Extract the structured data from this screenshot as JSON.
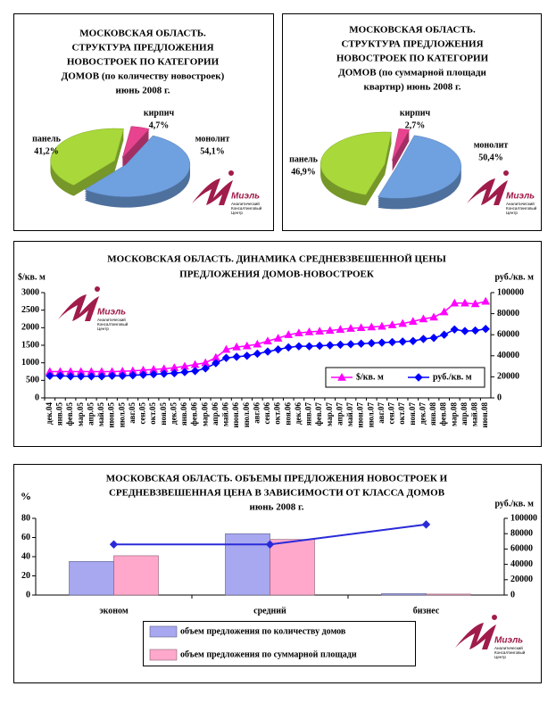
{
  "chart_data": [
    {
      "type": "pie",
      "title": [
        "МОСКОВСКАЯ ОБЛАСТЬ.",
        "СТРУКТУРА ПРЕДЛОЖЕНИЯ",
        "НОВОСТРОЕК ПО КАТЕГОРИИ",
        "ДОМОВ (по количеству новостроек)",
        "июнь 2008 г."
      ],
      "categories": [
        "кирпич",
        "монолит",
        "панель"
      ],
      "values": [
        4.7,
        54.1,
        41.2
      ],
      "value_labels": [
        "4,7%",
        "54,1%",
        "41,2%"
      ],
      "colors": [
        "#e8438f",
        "#6fa0e0",
        "#a8d83a"
      ],
      "logo": "Миэль",
      "logo_text": [
        "Аналитический",
        "Консалтинговый",
        "Центр"
      ]
    },
    {
      "type": "pie",
      "title": [
        "МОСКОВСКАЯ ОБЛАСТЬ.",
        "СТРУКТУРА ПРЕДЛОЖЕНИЯ",
        "НОВОСТРОЕК ПО КАТЕГОРИИ",
        "ДОМОВ (по суммарной площади",
        "квартир) июнь 2008 г."
      ],
      "categories": [
        "кирпич",
        "монолит",
        "панель"
      ],
      "values": [
        2.7,
        50.4,
        46.9
      ],
      "value_labels": [
        "2,7%",
        "50,4%",
        "46,9%"
      ],
      "colors": [
        "#e8438f",
        "#6fa0e0",
        "#a8d83a"
      ],
      "logo": "Миэль",
      "logo_text": [
        "Аналитический",
        "Консалтинговый",
        "Центр"
      ]
    },
    {
      "type": "line",
      "title": [
        "МОСКОВСКАЯ ОБЛАСТЬ. ДИНАМИКА СРЕДНЕВЗВЕШЕННОЙ ЦЕНЫ",
        "ПРЕДЛОЖЕНИЯ ДОМОВ-НОВОСТРОЕК"
      ],
      "ylabel": "$/кв. м",
      "y2label": "руб./кв. м",
      "categories": [
        "дек.04",
        "янв.05",
        "фев.05",
        "мар.05",
        "апр.05",
        "май.05",
        "июн.05",
        "июл.05",
        "авг.05",
        "сен.05",
        "окт.05",
        "ноя.05",
        "дек.05",
        "янв.06",
        "фев.06",
        "мар.06",
        "апр.06",
        "май.06",
        "июн.06",
        "июл.06",
        "авг.06",
        "сен.06",
        "окт.06",
        "ноя.06",
        "дек.06",
        "янв.07",
        "фев.07",
        "мар.07",
        "апр.07",
        "май.07",
        "июн.07",
        "июл.07",
        "авг.07",
        "сен.07",
        "окт.07",
        "ноя.07",
        "дек.07",
        "янв.08",
        "фев.08",
        "мар.08",
        "апр.08",
        "май.08",
        "июн.08"
      ],
      "series": [
        {
          "name": "$/кв. м",
          "color": "#ff00ff",
          "marker": "triangle",
          "values": [
            750,
            750,
            750,
            750,
            750,
            750,
            750,
            760,
            770,
            790,
            810,
            830,
            860,
            900,
            950,
            1000,
            1150,
            1380,
            1450,
            1480,
            1530,
            1620,
            1700,
            1800,
            1850,
            1880,
            1900,
            1920,
            1950,
            1980,
            2000,
            2020,
            2040,
            2080,
            2120,
            2180,
            2250,
            2300,
            2450,
            2700,
            2700,
            2680,
            2750
          ]
        },
        {
          "name": "руб./кв. м",
          "color": "#0000ff",
          "marker": "diamond",
          "axis": "y2",
          "values": [
            21000,
            21000,
            20500,
            20500,
            20500,
            20500,
            21000,
            21000,
            21500,
            22000,
            22500,
            23000,
            23500,
            24500,
            25500,
            28000,
            33000,
            38000,
            39000,
            40000,
            42000,
            44000,
            46000,
            48000,
            49000,
            49000,
            49500,
            50000,
            50500,
            51000,
            51500,
            52000,
            52500,
            53000,
            53500,
            54000,
            56000,
            57000,
            60000,
            65000,
            63500,
            64000,
            65500
          ]
        }
      ],
      "ylim": [
        0,
        3000
      ],
      "yticks": [
        0,
        500,
        1000,
        1500,
        2000,
        2500,
        3000
      ],
      "y2lim": [
        0,
        100000
      ],
      "y2ticks": [
        0,
        20000,
        40000,
        60000,
        80000,
        100000
      ],
      "legend": "lower right",
      "logo": "Миэль",
      "logo_text": [
        "Аналитический",
        "Консалтинговый",
        "Центр"
      ]
    },
    {
      "type": "bar",
      "title": [
        "МОСКОВСКАЯ ОБЛАСТЬ. ОБЪЕМЫ ПРЕДЛОЖЕНИЯ НОВОСТРОЕК И",
        "СРЕДНЕВЗВЕШЕННАЯ ЦЕНА В ЗАВИСИМОСТИ ОТ КЛАССА ДОМОВ",
        "июнь 2008 г."
      ],
      "ylabel": "%",
      "y2label": "руб./кв. м",
      "categories": [
        "эконом",
        "средний",
        "бизнес"
      ],
      "series": [
        {
          "name": "объем предложения по количеству домов",
          "color": "#a8a8f0",
          "values": [
            35,
            64,
            1.5
          ]
        },
        {
          "name": "объем предложения по суммарной площади",
          "color": "#ffa8cc",
          "values": [
            41,
            58,
            1
          ]
        },
        {
          "type": "line",
          "color": "#2a2ad8",
          "axis": "y2",
          "marker": "diamond",
          "values": [
            66000,
            66000,
            92000
          ]
        }
      ],
      "ylim": [
        0,
        80
      ],
      "yticks": [
        0,
        20,
        40,
        60,
        80
      ],
      "y2lim": [
        0,
        100000
      ],
      "y2ticks": [
        0,
        20000,
        40000,
        60000,
        80000,
        100000
      ],
      "legend": "bottom",
      "logo": "Миэль",
      "logo_text": [
        "Аналитический",
        "Консалтинговый",
        "Центр"
      ]
    }
  ]
}
